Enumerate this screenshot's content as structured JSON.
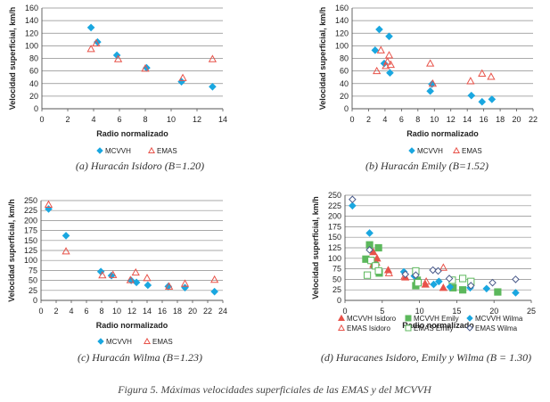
{
  "figure_caption": "Figura 5. Máximas velocidades superficiales de las EMAS y del MCVVH",
  "colors": {
    "mcvvh": "#1aa7e0",
    "emas": "#e8534a",
    "mcvvh_emily": "#5cb85c",
    "emas_wilma": "#4a5a8a"
  },
  "chart_data": [
    {
      "type": "scatter",
      "caption": "(a) Huracán Isidoro (B=1.20)",
      "xlabel": "Radio normalizado",
      "ylabel": "Velocidad superficial, km/h",
      "xlim": [
        0,
        14
      ],
      "ylim": [
        0,
        160
      ],
      "xticks": [
        0,
        2,
        4,
        6,
        8,
        10,
        12,
        14
      ],
      "yticks": [
        0,
        20,
        40,
        60,
        80,
        100,
        120,
        140,
        160
      ],
      "legend_cols": 2,
      "series": [
        {
          "name": "MCVVH",
          "marker": "diamond",
          "color": "mcvvh",
          "points": [
            [
              3.8,
              129
            ],
            [
              4.3,
              106
            ],
            [
              5.8,
              85
            ],
            [
              8.1,
              65
            ],
            [
              10.8,
              43
            ],
            [
              13.2,
              35
            ]
          ]
        },
        {
          "name": "EMAS",
          "marker": "triangle",
          "color": "emas",
          "points": [
            [
              3.8,
              95
            ],
            [
              4.2,
              104
            ],
            [
              5.9,
              79
            ],
            [
              8.0,
              64
            ],
            [
              10.9,
              49
            ],
            [
              13.2,
              79
            ]
          ]
        }
      ]
    },
    {
      "type": "scatter",
      "caption": "(b) Huracán Emily (B=1.52)",
      "xlabel": "Radio normalizado",
      "ylabel": "Velocidad superficial, km/h",
      "xlim": [
        0,
        22
      ],
      "ylim": [
        0,
        160
      ],
      "xticks": [
        0,
        2,
        4,
        6,
        8,
        10,
        12,
        14,
        16,
        18,
        20,
        22
      ],
      "yticks": [
        0,
        20,
        40,
        60,
        80,
        100,
        120,
        140,
        160
      ],
      "legend_cols": 2,
      "series": [
        {
          "name": "MCVVH",
          "marker": "diamond",
          "color": "mcvvh",
          "points": [
            [
              2.8,
              93
            ],
            [
              3.3,
              126
            ],
            [
              4.5,
              115
            ],
            [
              3.9,
              72
            ],
            [
              4.6,
              57
            ],
            [
              9.5,
              28
            ],
            [
              9.7,
              39
            ],
            [
              14.5,
              21
            ],
            [
              15.8,
              11
            ],
            [
              17.0,
              15
            ]
          ]
        },
        {
          "name": "EMAS",
          "marker": "triangle",
          "color": "emas",
          "points": [
            [
              3.0,
              60
            ],
            [
              3.5,
              93
            ],
            [
              4.1,
              68
            ],
            [
              4.5,
              85
            ],
            [
              4.3,
              75
            ],
            [
              4.7,
              70
            ],
            [
              9.5,
              72
            ],
            [
              9.8,
              40
            ],
            [
              14.4,
              44
            ],
            [
              15.8,
              56
            ],
            [
              16.9,
              51
            ]
          ]
        }
      ]
    },
    {
      "type": "scatter",
      "caption": "(c) Huracán Wilma (B=1.23)",
      "xlabel": "Radio normalizado",
      "ylabel": "Velocidad superficial, km/h",
      "xlim": [
        0,
        24
      ],
      "ylim": [
        0,
        250
      ],
      "xticks": [
        0,
        2,
        4,
        6,
        8,
        10,
        12,
        14,
        16,
        18,
        20,
        22,
        24
      ],
      "yticks": [
        0,
        25,
        50,
        75,
        100,
        125,
        150,
        175,
        200,
        225,
        250
      ],
      "legend_cols": 2,
      "series": [
        {
          "name": "MCVVH",
          "marker": "diamond",
          "color": "mcvvh",
          "points": [
            [
              1.0,
              229
            ],
            [
              3.3,
              162
            ],
            [
              7.9,
              72
            ],
            [
              9.3,
              62
            ],
            [
              11.9,
              50
            ],
            [
              12.6,
              45
            ],
            [
              14.1,
              38
            ],
            [
              16.8,
              35
            ],
            [
              19.0,
              32
            ],
            [
              22.9,
              22
            ]
          ]
        },
        {
          "name": "EMAS",
          "marker": "triangle",
          "color": "emas",
          "points": [
            [
              1.0,
              240
            ],
            [
              3.3,
              123
            ],
            [
              8.1,
              63
            ],
            [
              9.5,
              64
            ],
            [
              11.8,
              51
            ],
            [
              12.5,
              70
            ],
            [
              14.0,
              56
            ],
            [
              16.9,
              35
            ],
            [
              19.0,
              42
            ],
            [
              22.9,
              52
            ]
          ]
        }
      ]
    },
    {
      "type": "scatter",
      "caption": "(d) Huracanes Isidoro, Emily y Wilma (B = 1.30)",
      "xlabel": "Radio normalizado",
      "ylabel": "Velocidad superficial, km/h",
      "xlim": [
        0,
        25
      ],
      "ylim": [
        0,
        250
      ],
      "xticks": [
        0,
        5,
        10,
        15,
        20,
        25
      ],
      "yticks": [
        0,
        25,
        50,
        75,
        100,
        125,
        150,
        175,
        200,
        225,
        250
      ],
      "legend_cols": 3,
      "series": [
        {
          "name": "MCVVH Isidoro",
          "marker": "triangle-filled",
          "color": "emas",
          "points": [
            [
              3.8,
              115
            ],
            [
              4.3,
              100
            ],
            [
              5.8,
              72
            ],
            [
              8.1,
              55
            ],
            [
              10.8,
              38
            ],
            [
              13.2,
              30
            ]
          ]
        },
        {
          "name": "MCVVH Emily",
          "marker": "square-filled",
          "color": "mcvvh_emily",
          "points": [
            [
              2.8,
              98
            ],
            [
              3.3,
              132
            ],
            [
              4.5,
              125
            ],
            [
              3.9,
              85
            ],
            [
              4.6,
              65
            ],
            [
              9.5,
              35
            ],
            [
              9.7,
              48
            ],
            [
              14.5,
              30
            ],
            [
              15.8,
              25
            ],
            [
              20.5,
              20
            ]
          ]
        },
        {
          "name": "MCVVH Wilma",
          "marker": "diamond",
          "color": "mcvvh",
          "points": [
            [
              1.0,
              225
            ],
            [
              3.3,
              160
            ],
            [
              7.9,
              68
            ],
            [
              9.3,
              58
            ],
            [
              11.9,
              38
            ],
            [
              12.6,
              45
            ],
            [
              14.1,
              32
            ],
            [
              16.8,
              30
            ],
            [
              19.0,
              28
            ],
            [
              22.9,
              18
            ]
          ]
        },
        {
          "name": "EMAS Isidoro",
          "marker": "triangle",
          "color": "emas",
          "points": [
            [
              3.8,
              85
            ],
            [
              4.2,
              90
            ],
            [
              5.9,
              65
            ],
            [
              8.0,
              57
            ],
            [
              10.9,
              45
            ],
            [
              13.2,
              78
            ]
          ]
        },
        {
          "name": "EMAS Emily",
          "marker": "square",
          "color": "mcvvh_emily",
          "points": [
            [
              3.0,
              60
            ],
            [
              3.5,
              95
            ],
            [
              4.1,
              82
            ],
            [
              4.5,
              70
            ],
            [
              9.5,
              70
            ],
            [
              9.8,
              42
            ],
            [
              14.4,
              48
            ],
            [
              15.8,
              52
            ],
            [
              16.9,
              45
            ]
          ]
        },
        {
          "name": "EMAS Wilma",
          "marker": "diamond-open",
          "color": "emas_wilma",
          "points": [
            [
              1.0,
              240
            ],
            [
              3.3,
              120
            ],
            [
              8.1,
              62
            ],
            [
              9.5,
              60
            ],
            [
              11.8,
              72
            ],
            [
              12.5,
              70
            ],
            [
              14.0,
              52
            ],
            [
              16.9,
              35
            ],
            [
              19.8,
              42
            ],
            [
              22.9,
              50
            ]
          ]
        }
      ]
    }
  ]
}
